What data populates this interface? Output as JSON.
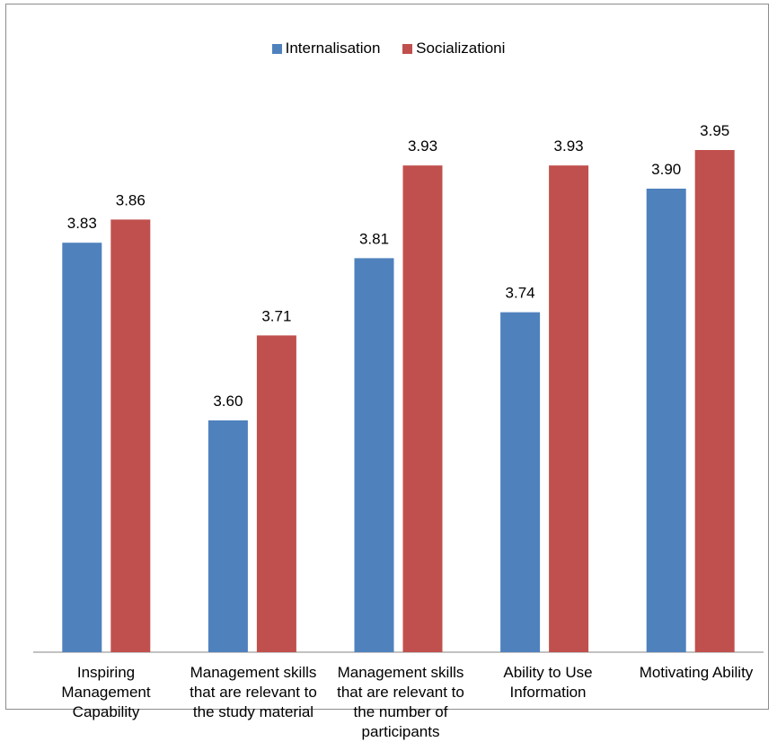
{
  "chart_data": {
    "type": "bar",
    "categories": [
      "Inspiring Management Capability",
      "Management skills that are relevant to the study material",
      "Management skills that are relevant to the number of participants",
      "Ability to Use Information",
      "Motivating Ability"
    ],
    "series": [
      {
        "name": "Internalisation",
        "color": "#4F81BD",
        "values": [
          3.83,
          3.6,
          3.81,
          3.74,
          3.9
        ],
        "labels": [
          "3.83",
          "3.60",
          "3.81",
          "3.74",
          "3.90"
        ]
      },
      {
        "name": "Socializationi",
        "color": "#C0504D",
        "values": [
          3.86,
          3.71,
          3.93,
          3.93,
          3.95
        ],
        "labels": [
          "3.86",
          "3.71",
          "3.93",
          "3.93",
          "3.95"
        ]
      }
    ],
    "legend": "top-center",
    "grid": false,
    "axis": "baseline only, no y-axis ticks"
  }
}
